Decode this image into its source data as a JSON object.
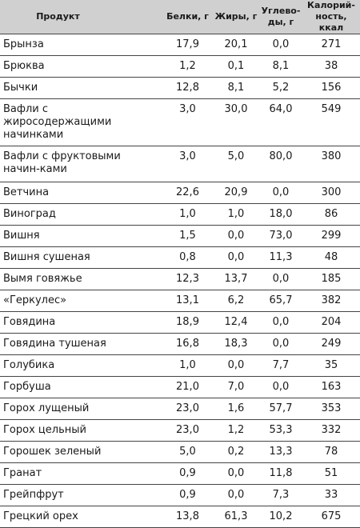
{
  "table": {
    "headers": {
      "name": "Продукт",
      "protein": "Белки, г",
      "fat": "Жиры, г",
      "carbs": "Углево-\nды, г",
      "kcal": "Калорий-\nность, ккал"
    },
    "rows": [
      {
        "name": "Брынза",
        "protein": "17,9",
        "fat": "20,1",
        "carbs": "0,0",
        "kcal": "271"
      },
      {
        "name": "Брюква",
        "protein": "1,2",
        "fat": "0,1",
        "carbs": "8,1",
        "kcal": "38"
      },
      {
        "name": "Бычки",
        "protein": "12,8",
        "fat": "8,1",
        "carbs": "5,2",
        "kcal": "156"
      },
      {
        "name": "Вафли с жиросодержащими начинками",
        "protein": "3,0",
        "fat": "30,0",
        "carbs": "64,0",
        "kcal": "549"
      },
      {
        "name": "Вафли с фруктовыми начин-ками",
        "protein": "3,0",
        "fat": "5,0",
        "carbs": "80,0",
        "kcal": "380"
      },
      {
        "name": "Ветчина",
        "protein": "22,6",
        "fat": "20,9",
        "carbs": "0,0",
        "kcal": "300"
      },
      {
        "name": "Виноград",
        "protein": "1,0",
        "fat": "1,0",
        "carbs": "18,0",
        "kcal": "86"
      },
      {
        "name": "Вишня",
        "protein": "1,5",
        "fat": "0,0",
        "carbs": "73,0",
        "kcal": "299"
      },
      {
        "name": "Вишня сушеная",
        "protein": "0,8",
        "fat": "0,0",
        "carbs": "11,3",
        "kcal": "48"
      },
      {
        "name": "Вымя говяжье",
        "protein": "12,3",
        "fat": "13,7",
        "carbs": "0,0",
        "kcal": "185"
      },
      {
        "name": "«Геркулес»",
        "protein": "13,1",
        "fat": "6,2",
        "carbs": "65,7",
        "kcal": "382"
      },
      {
        "name": "Говядина",
        "protein": "18,9",
        "fat": "12,4",
        "carbs": "0,0",
        "kcal": "204"
      },
      {
        "name": "Говядина тушеная",
        "protein": "16,8",
        "fat": "18,3",
        "carbs": "0,0",
        "kcal": "249"
      },
      {
        "name": "Голубика",
        "protein": "1,0",
        "fat": "0,0",
        "carbs": "7,7",
        "kcal": "35"
      },
      {
        "name": "Горбуша",
        "protein": "21,0",
        "fat": "7,0",
        "carbs": "0,0",
        "kcal": "163"
      },
      {
        "name": "Горох лущеный",
        "protein": "23,0",
        "fat": "1,6",
        "carbs": "57,7",
        "kcal": "353"
      },
      {
        "name": "Горох цельный",
        "protein": "23,0",
        "fat": "1,2",
        "carbs": "53,3",
        "kcal": "332"
      },
      {
        "name": "Горошек зеленый",
        "protein": "5,0",
        "fat": "0,2",
        "carbs": "13,3",
        "kcal": "78"
      },
      {
        "name": "Гранат",
        "protein": "0,9",
        "fat": "0,0",
        "carbs": "11,8",
        "kcal": "51"
      },
      {
        "name": "Грейпфрут",
        "protein": "0,9",
        "fat": "0,0",
        "carbs": "7,3",
        "kcal": "33"
      },
      {
        "name": "Грецкий орех",
        "protein": "13,8",
        "fat": "61,3",
        "carbs": "10,2",
        "kcal": "675"
      }
    ]
  }
}
